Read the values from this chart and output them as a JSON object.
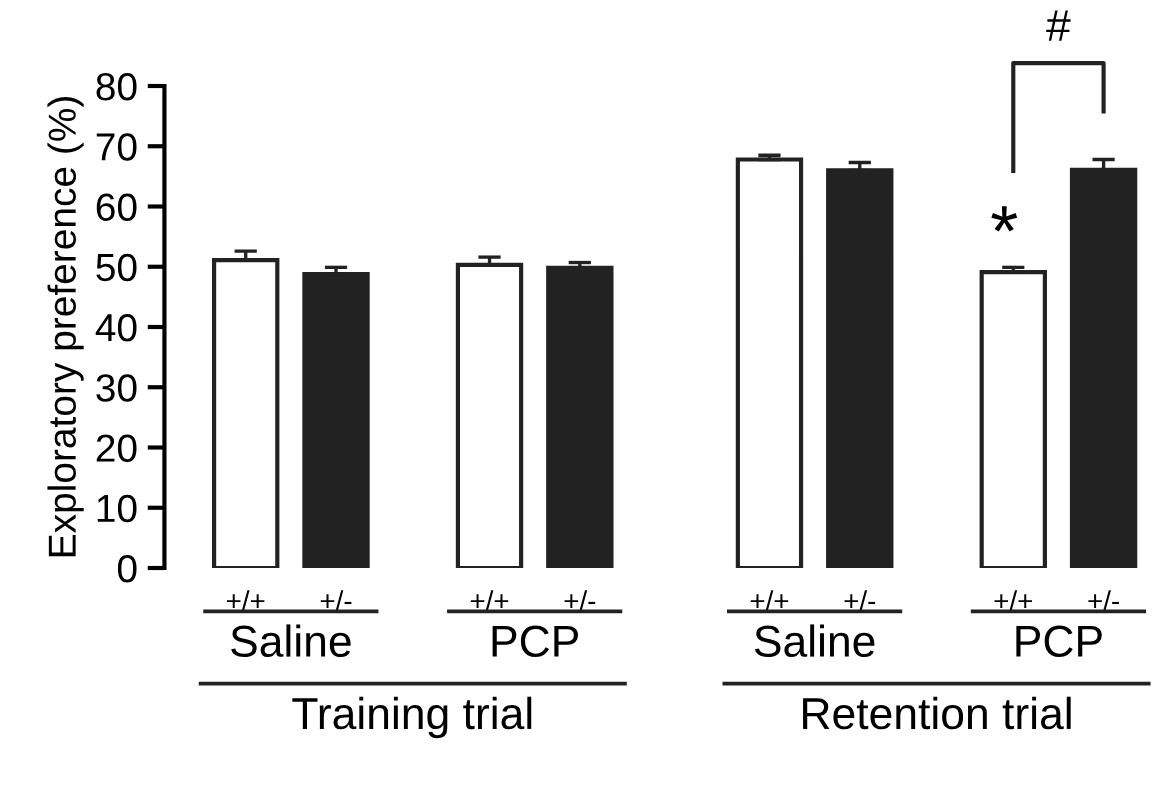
{
  "chart_data": {
    "type": "bar",
    "ylabel": "Exploratory preference (%)",
    "categories": [
      "+/+",
      "+/-",
      "+/+",
      "+/-",
      "+/+",
      "+/-",
      "+/+",
      "+/-"
    ],
    "values": [
      51.1,
      48.8,
      50.3,
      49.8,
      67.8,
      66.0,
      49.1,
      66.1
    ],
    "errors": [
      1.5,
      1.1,
      1.3,
      0.9,
      0.7,
      1.3,
      0.8,
      1.7
    ],
    "colors": [
      "#ffffff",
      "#222222",
      "#ffffff",
      "#222222",
      "#ffffff",
      "#222222",
      "#ffffff",
      "#222222"
    ],
    "ylim": [
      0,
      80
    ],
    "yticks": [
      0,
      10,
      20,
      30,
      40,
      50,
      60,
      70,
      80
    ],
    "grid": false,
    "annotations": [
      "Saline",
      "PCP",
      "Saline",
      "PCP",
      "Training trial",
      "Retention trial",
      "*",
      "#"
    ]
  }
}
